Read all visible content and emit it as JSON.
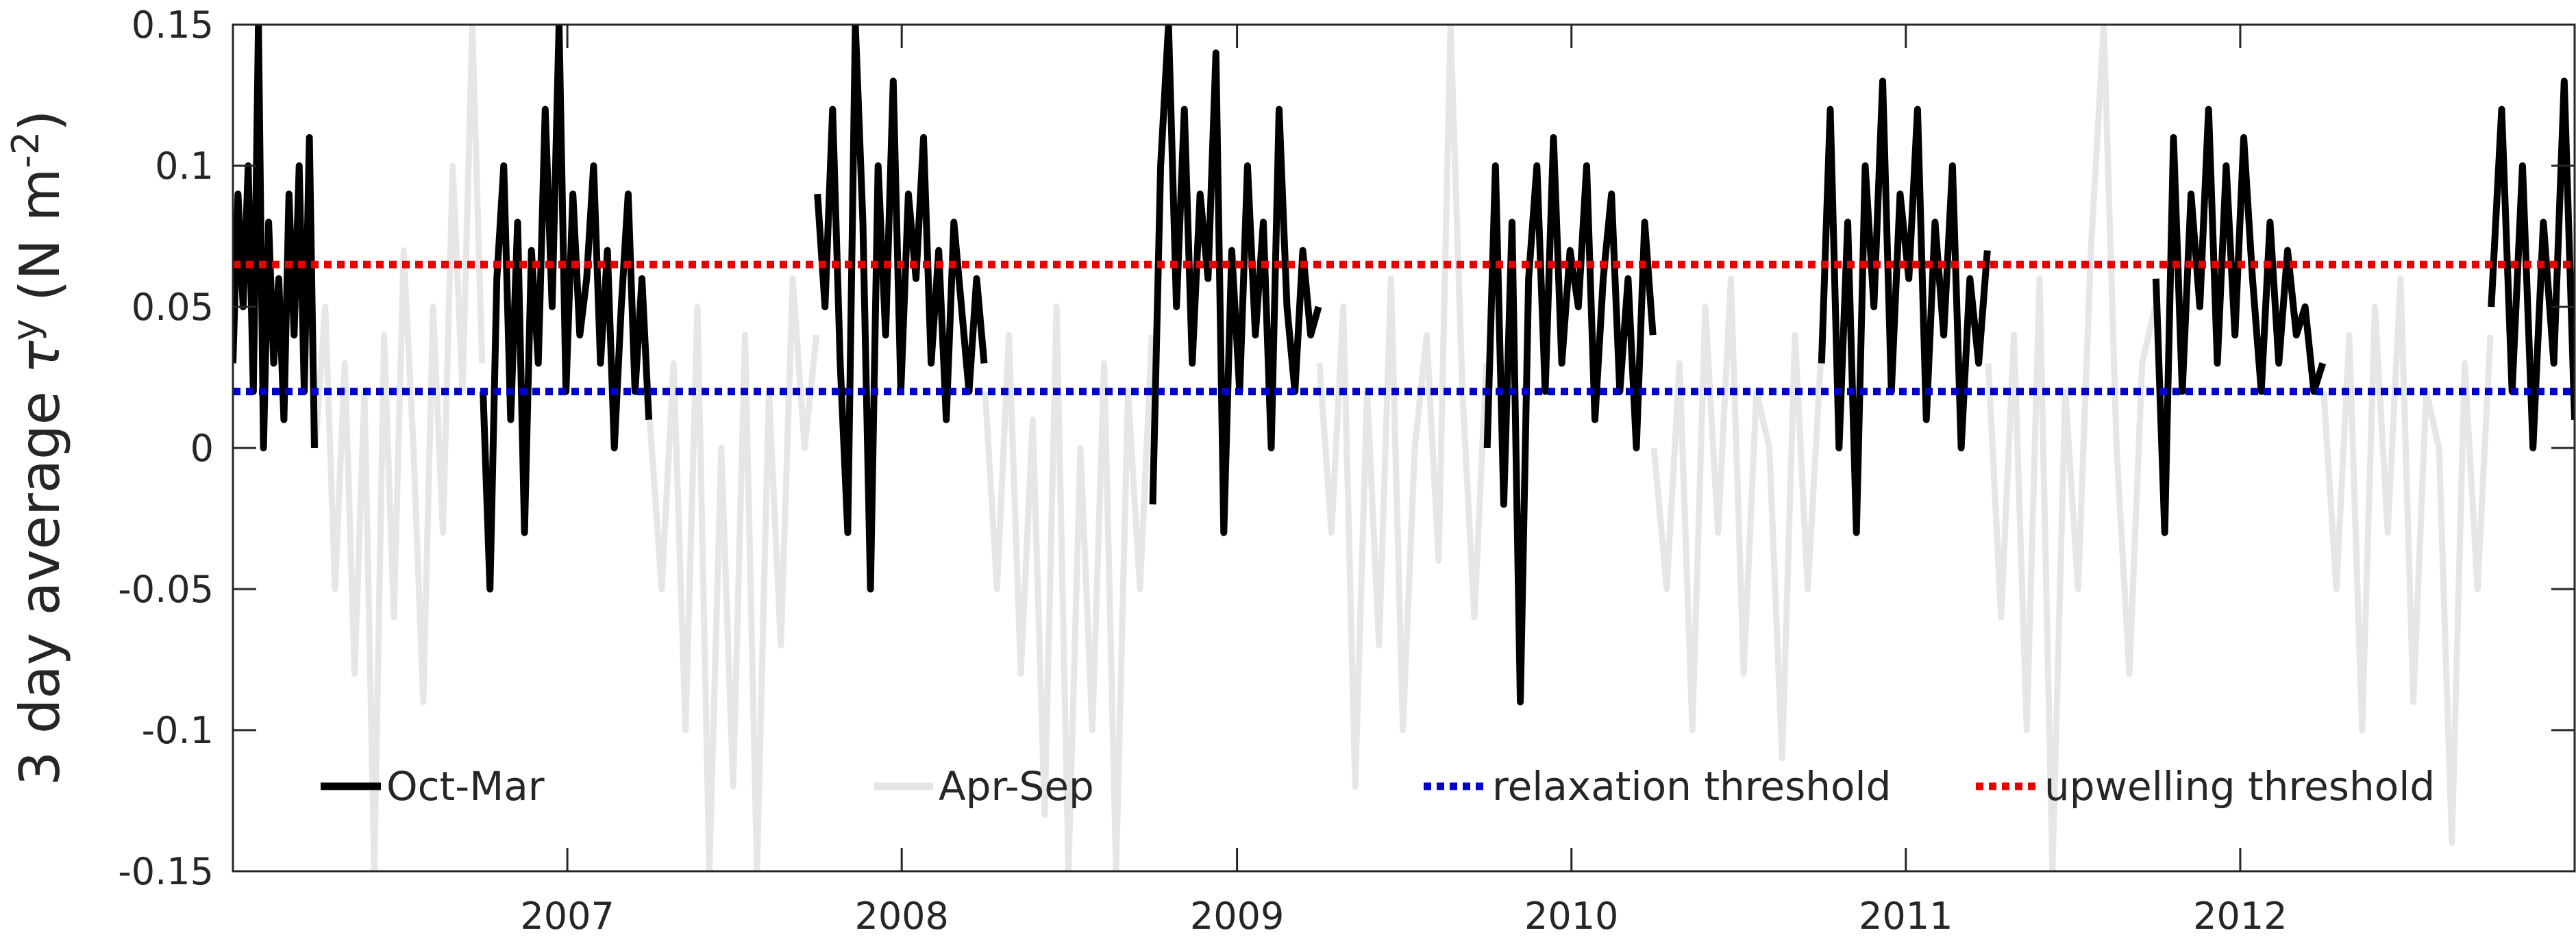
{
  "chart_data": {
    "type": "line",
    "title": "",
    "xlabel": "",
    "ylabel": {
      "prefix": "3 day average ",
      "symbol": "τ",
      "superscript": "y",
      "unit_open": " (N m",
      "unit_exp": "-2",
      "unit_close": ")"
    },
    "xlim": [
      "2006-01-01",
      "2012-12-31"
    ],
    "ylim": [
      -0.15,
      0.15
    ],
    "x_ticks": [
      {
        "label": "2007",
        "date": "2007-01-01"
      },
      {
        "label": "2008",
        "date": "2008-01-01"
      },
      {
        "label": "2009",
        "date": "2009-01-01"
      },
      {
        "label": "2010",
        "date": "2010-01-01"
      },
      {
        "label": "2011",
        "date": "2011-01-01"
      },
      {
        "label": "2012",
        "date": "2012-01-01"
      }
    ],
    "y_ticks": [
      {
        "label": "0.15",
        "value": 0.15
      },
      {
        "label": "0.1",
        "value": 0.1
      },
      {
        "label": "0.05",
        "value": 0.05
      },
      {
        "label": "0",
        "value": 0
      },
      {
        "label": "-0.05",
        "value": -0.05
      },
      {
        "label": "-0.1",
        "value": -0.1
      },
      {
        "label": "-0.15",
        "value": -0.15
      }
    ],
    "grid": false,
    "legend_position": "bottom, inside axes, single row",
    "series": [
      {
        "name": "Oct-Mar",
        "color": "#000000",
        "style": "solid",
        "segments": [
          {
            "start": "2006-01-01",
            "end": "2006-03-31",
            "values": [
              0.03,
              0.09,
              0.05,
              0.1,
              0.02,
              0.15,
              0.0,
              0.08,
              0.03,
              0.06,
              0.01,
              0.09,
              0.04,
              0.1,
              0.02,
              0.11,
              0.0
            ]
          },
          {
            "start": "2006-10-01",
            "end": "2007-03-31",
            "values": [
              0.02,
              -0.05,
              0.06,
              0.1,
              0.01,
              0.08,
              -0.03,
              0.07,
              0.03,
              0.12,
              0.05,
              0.15,
              0.02,
              0.09,
              0.04,
              0.06,
              0.1,
              0.03,
              0.07,
              0.0,
              0.05,
              0.09,
              0.02,
              0.06,
              0.01
            ]
          },
          {
            "start": "2007-10-01",
            "end": "2008-03-31",
            "values": [
              0.09,
              0.05,
              0.12,
              0.03,
              -0.03,
              0.15,
              0.08,
              -0.05,
              0.1,
              0.04,
              0.13,
              0.02,
              0.09,
              0.06,
              0.11,
              0.03,
              0.07,
              0.01,
              0.08,
              0.05,
              0.02,
              0.06,
              0.03
            ]
          },
          {
            "start": "2008-10-01",
            "end": "2009-03-31",
            "values": [
              -0.02,
              0.1,
              0.15,
              0.05,
              0.12,
              0.03,
              0.09,
              0.06,
              0.14,
              -0.03,
              0.07,
              0.02,
              0.1,
              0.04,
              0.08,
              0.0,
              0.12,
              0.05,
              0.02,
              0.07,
              0.04,
              0.05
            ]
          },
          {
            "start": "2009-10-01",
            "end": "2010-03-31",
            "values": [
              0.0,
              0.1,
              -0.02,
              0.08,
              -0.09,
              0.06,
              0.1,
              0.02,
              0.11,
              0.03,
              0.07,
              0.05,
              0.1,
              0.01,
              0.06,
              0.09,
              0.02,
              0.06,
              0.0,
              0.08,
              0.04
            ]
          },
          {
            "start": "2010-10-01",
            "end": "2011-03-31",
            "values": [
              0.03,
              0.12,
              0.0,
              0.08,
              -0.03,
              0.1,
              0.05,
              0.13,
              0.02,
              0.09,
              0.06,
              0.12,
              0.01,
              0.08,
              0.04,
              0.1,
              0.0,
              0.06,
              0.03,
              0.07
            ]
          },
          {
            "start": "2011-10-01",
            "end": "2012-03-31",
            "values": [
              0.06,
              -0.03,
              0.11,
              0.02,
              0.09,
              0.05,
              0.12,
              0.03,
              0.1,
              0.04,
              0.11,
              0.06,
              0.02,
              0.08,
              0.03,
              0.07,
              0.04,
              0.05,
              0.02,
              0.03
            ]
          },
          {
            "start": "2012-10-01",
            "end": "2012-12-31",
            "values": [
              0.05,
              0.12,
              0.02,
              0.1,
              0.0,
              0.08,
              0.03,
              0.13,
              0.01
            ]
          }
        ]
      },
      {
        "name": "Apr-Sep",
        "color": "#e6e6e6",
        "style": "solid",
        "segments": [
          {
            "start": "2006-04-01",
            "end": "2006-09-30",
            "values": [
              0.0,
              0.05,
              -0.05,
              0.03,
              -0.08,
              0.02,
              -0.15,
              0.04,
              -0.06,
              0.07,
              0.0,
              -0.09,
              0.05,
              -0.03,
              0.1,
              0.02,
              0.15,
              0.03
            ]
          },
          {
            "start": "2007-04-01",
            "end": "2007-09-30",
            "values": [
              0.01,
              -0.05,
              0.03,
              -0.1,
              0.05,
              -0.15,
              0.0,
              -0.12,
              0.04,
              -0.15,
              0.02,
              -0.07,
              0.06,
              0.0,
              0.04
            ]
          },
          {
            "start": "2008-04-01",
            "end": "2008-09-30",
            "values": [
              0.02,
              -0.05,
              0.04,
              -0.08,
              0.01,
              -0.13,
              0.05,
              -0.15,
              0.0,
              -0.1,
              0.03,
              -0.15,
              0.02,
              -0.05,
              0.04
            ]
          },
          {
            "start": "2009-04-01",
            "end": "2009-09-30",
            "values": [
              0.03,
              -0.03,
              0.05,
              -0.12,
              0.02,
              -0.07,
              0.06,
              -0.1,
              0.0,
              0.04,
              -0.04,
              0.15,
              0.02,
              -0.06,
              0.03
            ]
          },
          {
            "start": "2010-04-01",
            "end": "2010-09-30",
            "values": [
              0.0,
              -0.05,
              0.03,
              -0.1,
              0.05,
              -0.03,
              0.06,
              -0.08,
              0.02,
              0.0,
              -0.11,
              0.04,
              -0.05,
              0.03
            ]
          },
          {
            "start": "2011-04-01",
            "end": "2011-09-30",
            "values": [
              0.03,
              -0.06,
              0.04,
              -0.1,
              0.06,
              -0.15,
              0.02,
              -0.05,
              0.07,
              0.15,
              0.0,
              -0.08,
              0.03,
              0.05
            ]
          },
          {
            "start": "2012-04-01",
            "end": "2012-09-30",
            "values": [
              0.02,
              -0.05,
              0.04,
              -0.1,
              0.05,
              -0.03,
              0.06,
              -0.09,
              0.02,
              0.0,
              -0.14,
              0.03,
              -0.05,
              0.04
            ]
          }
        ]
      },
      {
        "name": "relaxation threshold",
        "color": "#0000cc",
        "style": "dotted",
        "constant": 0.02
      },
      {
        "name": "upwelling threshold",
        "color": "#e60000",
        "style": "dotted",
        "constant": 0.065
      }
    ]
  }
}
